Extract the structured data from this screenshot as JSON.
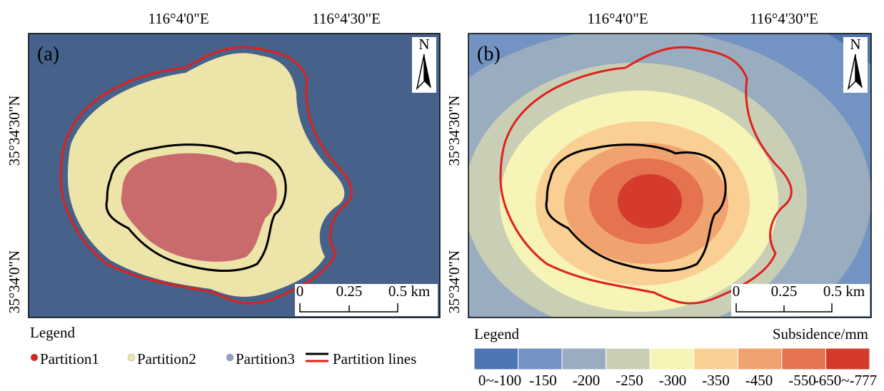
{
  "panels": [
    {
      "label": "(a)",
      "north": "N",
      "lon_labels": [
        "116°4'0\"E",
        "116°4'30\"E"
      ],
      "lat_labels": [
        "35°34'30\"N",
        "35°34'0\"N"
      ],
      "scale_labels": [
        "0",
        "0.25",
        "0.5 km"
      ]
    },
    {
      "label": "(b)",
      "north": "N",
      "lon_labels": [
        "116°4'0\"E",
        "116°4'30\"E"
      ],
      "lat_labels": [
        "35°34'30\"N",
        "35°34'0\"N"
      ],
      "scale_labels": [
        "0",
        "0.25",
        "0.5 km"
      ]
    }
  ],
  "legend_a": {
    "title": "Legend",
    "items": [
      {
        "name": "Partition1",
        "color": "#e0201c"
      },
      {
        "name": "Partition2",
        "color": "#ece4a8"
      },
      {
        "name": "Partition3",
        "color": "#8e9fc8"
      },
      {
        "name": "Partition lines"
      }
    ]
  },
  "legend_b": {
    "title": "Legend",
    "unit": "Subsidence/mm",
    "classes": [
      {
        "label": "0~-100",
        "color": "#4d75b3"
      },
      {
        "label": "-150",
        "color": "#7393c2"
      },
      {
        "label": "-200",
        "color": "#9aacbf"
      },
      {
        "label": "-250",
        "color": "#c9cfb4"
      },
      {
        "label": "-300",
        "color": "#f7f4b8"
      },
      {
        "label": "-350",
        "color": "#f9cf94"
      },
      {
        "label": "-450",
        "color": "#f1a36f"
      },
      {
        "label": "-550",
        "color": "#e5734f"
      },
      {
        "label": "-650~-777",
        "color": "#d53b2d"
      }
    ]
  }
}
